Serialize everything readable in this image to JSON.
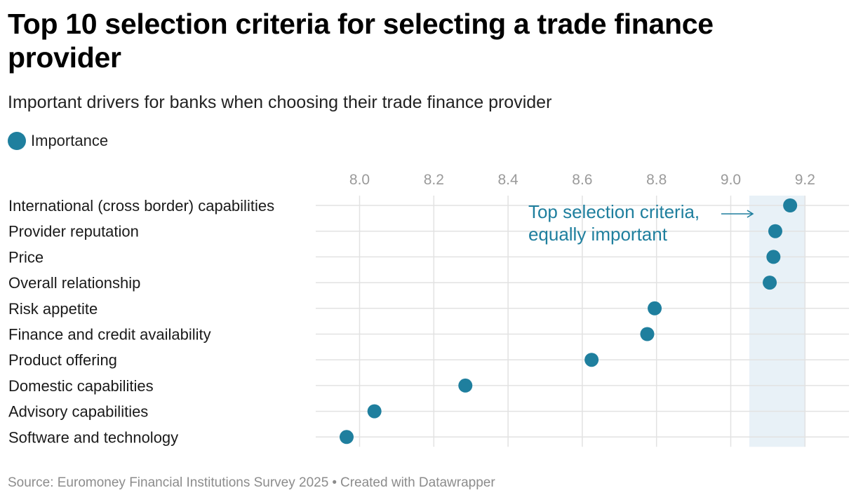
{
  "header": {
    "title": "Top 10 selection criteria for selecting a trade finance provider",
    "subtitle": "Important drivers for banks when choosing their trade finance provider"
  },
  "legend": {
    "label": "Importance"
  },
  "footer": {
    "source": "Source: Euromoney Financial Institutions Survey 2025",
    "separator": "•",
    "credit": "Created with Datawrapper"
  },
  "colors": {
    "dot": "#1f7f9e",
    "highlight_band": "#e8f1f7",
    "grid": "#e2e2e2",
    "annotation": "#1f7f9e",
    "tick_text": "#9a9a9a"
  },
  "chart_data": {
    "type": "scatter",
    "title": "Top 10 selection criteria for selecting a trade finance provider",
    "series": [
      {
        "name": "Importance",
        "categories": [
          "International (cross border) capabilities",
          "Provider reputation",
          "Price",
          "Overall relationship",
          "Risk appetite",
          "Finance and credit availability",
          "Product offering",
          "Domestic capabilities",
          "Advisory capabilities",
          "Software and technology"
        ],
        "values": [
          9.16,
          9.12,
          9.115,
          9.105,
          8.795,
          8.775,
          8.625,
          8.285,
          8.04,
          7.965
        ]
      }
    ],
    "xlim": [
      7.88,
      9.32
    ],
    "xticks": [
      "8.0",
      "8.2",
      "8.4",
      "8.6",
      "8.8",
      "9.0",
      "9.2"
    ],
    "highlight_range": [
      9.05,
      9.2
    ],
    "annotation": {
      "line1": "Top selection criteria,",
      "line2": "equally important",
      "arrow": "→"
    },
    "grid": true,
    "legend_position": "top-left"
  }
}
